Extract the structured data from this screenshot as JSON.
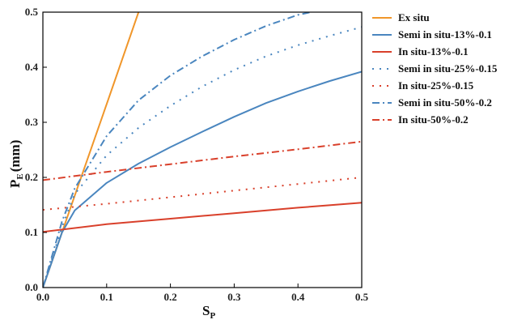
{
  "chart_data": {
    "type": "line",
    "xlabel": {
      "main": "S",
      "sub": "P"
    },
    "ylabel": {
      "main": "P",
      "sub": "E",
      "suffix": "(mm)"
    },
    "xlim": [
      0.0,
      0.5
    ],
    "ylim": [
      0.0,
      0.5
    ],
    "xticks": [
      "0.0",
      "0.1",
      "0.2",
      "0.3",
      "0.4",
      "0.5"
    ],
    "yticks": [
      "0.0",
      "0.1",
      "0.2",
      "0.3",
      "0.4",
      "0.5"
    ],
    "grid": false,
    "legend_position": "right",
    "series": [
      {
        "name": "Ex situ",
        "color": "#f0962a",
        "dash": "solid",
        "x": [
          0.0,
          0.05,
          0.1,
          0.15
        ],
        "y": [
          0.0,
          0.167,
          0.333,
          0.5
        ]
      },
      {
        "name": "Semi in situ-13%-0.1",
        "color": "#4a86bf",
        "dash": "solid",
        "x": [
          0.0,
          0.03,
          0.05,
          0.1,
          0.15,
          0.2,
          0.25,
          0.3,
          0.35,
          0.4,
          0.45,
          0.5
        ],
        "y": [
          0.0,
          0.1,
          0.14,
          0.19,
          0.225,
          0.255,
          0.283,
          0.31,
          0.335,
          0.356,
          0.375,
          0.392
        ]
      },
      {
        "name": "In situ-13%-0.1",
        "color": "#d9402b",
        "dash": "solid",
        "x": [
          0.0,
          0.1,
          0.2,
          0.3,
          0.4,
          0.5
        ],
        "y": [
          0.101,
          0.115,
          0.125,
          0.135,
          0.145,
          0.154
        ]
      },
      {
        "name": "Semi in situ-25%-0.15",
        "color": "#4a86bf",
        "dash": "dot",
        "x": [
          0.0,
          0.03,
          0.05,
          0.1,
          0.15,
          0.2,
          0.25,
          0.3,
          0.35,
          0.4,
          0.45,
          0.5
        ],
        "y": [
          0.0,
          0.11,
          0.17,
          0.24,
          0.29,
          0.33,
          0.365,
          0.395,
          0.42,
          0.44,
          0.457,
          0.473
        ]
      },
      {
        "name": "In situ-25%-0.15",
        "color": "#d9402b",
        "dash": "dot",
        "x": [
          0.0,
          0.1,
          0.2,
          0.3,
          0.4,
          0.5
        ],
        "y": [
          0.141,
          0.152,
          0.164,
          0.176,
          0.188,
          0.2
        ]
      },
      {
        "name": "Semi in situ-50%-0.2",
        "color": "#4a86bf",
        "dash": "dashdot",
        "x": [
          0.0,
          0.03,
          0.05,
          0.1,
          0.15,
          0.2,
          0.25,
          0.3,
          0.35,
          0.4,
          0.42
        ],
        "y": [
          0.0,
          0.12,
          0.18,
          0.275,
          0.34,
          0.385,
          0.42,
          0.45,
          0.475,
          0.495,
          0.5
        ]
      },
      {
        "name": "In situ-50%-0.2",
        "color": "#d9402b",
        "dash": "dashdot",
        "x": [
          0.0,
          0.1,
          0.2,
          0.3,
          0.4,
          0.5
        ],
        "y": [
          0.195,
          0.21,
          0.224,
          0.238,
          0.251,
          0.265
        ]
      }
    ]
  }
}
